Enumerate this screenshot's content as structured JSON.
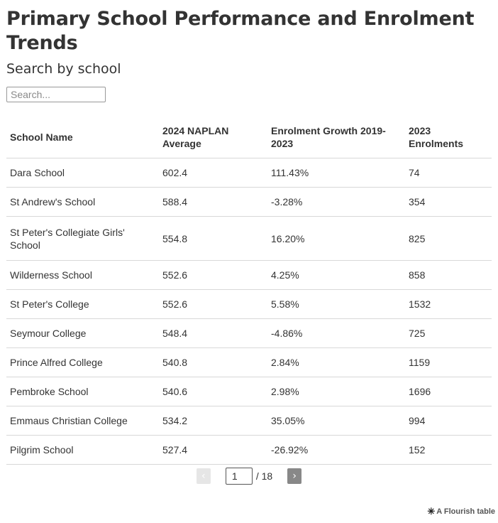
{
  "title": "Primary School Performance and Enrolment Trends",
  "subtitle": "Search by school",
  "search": {
    "placeholder": "Search..."
  },
  "table": {
    "headers": [
      "School Name",
      "2024 NAPLAN Average",
      "Enrolment Growth 2019-2023",
      "2023 Enrolments"
    ],
    "rows": [
      [
        "Dara School",
        "602.4",
        "111.43%",
        "74"
      ],
      [
        "St Andrew's School",
        "588.4",
        "-3.28%",
        "354"
      ],
      [
        "St Peter's Collegiate Girls' School",
        "554.8",
        "16.20%",
        "825"
      ],
      [
        "Wilderness School",
        "552.6",
        "4.25%",
        "858"
      ],
      [
        "St Peter's College",
        "552.6",
        "5.58%",
        "1532"
      ],
      [
        "Seymour College",
        "548.4",
        "-4.86%",
        "725"
      ],
      [
        "Prince Alfred College",
        "540.8",
        "2.84%",
        "1159"
      ],
      [
        "Pembroke School",
        "540.6",
        "2.98%",
        "1696"
      ],
      [
        "Emmaus Christian College",
        "534.2",
        "35.05%",
        "994"
      ],
      [
        "Pilgrim School",
        "527.4",
        "-26.92%",
        "152"
      ]
    ]
  },
  "pagination": {
    "prev_icon": "‹",
    "next_icon": "›",
    "current_page": "1",
    "total_label": "/ 18"
  },
  "credit": {
    "icon": "✳",
    "text": "A Flourish table"
  },
  "colors": {
    "text": "#333333",
    "divider": "#d8d8d8",
    "next_button": "#888888",
    "prev_button": "#e6e6e6"
  }
}
